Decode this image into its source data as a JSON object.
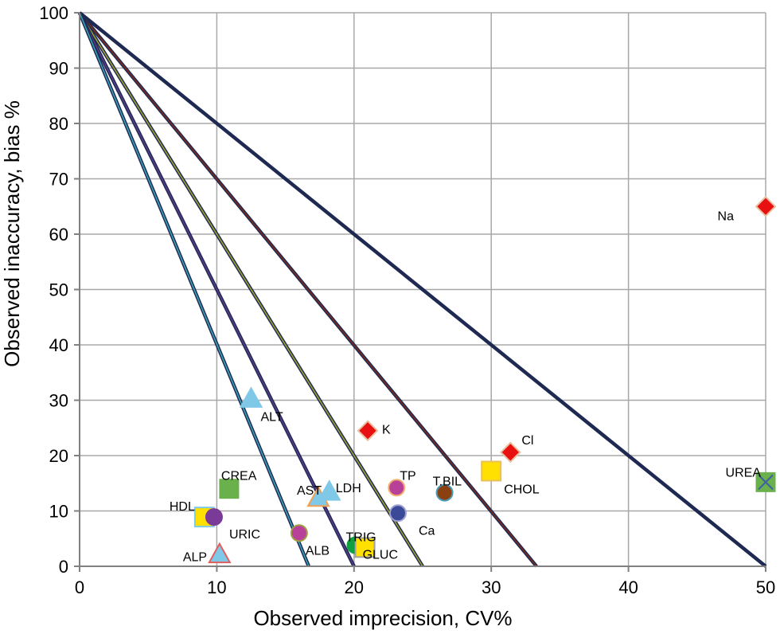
{
  "chart_data": {
    "type": "scatter",
    "xlabel": "Observed imprecision, CV%",
    "ylabel": "Observed inaccuracy, bias  %",
    "xlim": [
      0,
      50
    ],
    "ylim": [
      0,
      100
    ],
    "x_ticks": [
      0,
      10,
      20,
      30,
      40,
      50
    ],
    "y_ticks": [
      0,
      10,
      20,
      30,
      40,
      50,
      60,
      70,
      80,
      90,
      100
    ],
    "grid": true,
    "lines": [
      {
        "name": "line-x50",
        "x_intercept": 50,
        "y_intercept": 100,
        "color": "#1f2a52",
        "core": "#1f2a52"
      },
      {
        "name": "line-x33",
        "x_intercept": 33.3,
        "y_intercept": 100,
        "color": "#1f2a52",
        "core": "#7a2a1a"
      },
      {
        "name": "line-x25",
        "x_intercept": 25,
        "y_intercept": 100,
        "color": "#1f2a52",
        "core": "#9aa030"
      },
      {
        "name": "line-x20",
        "x_intercept": 20,
        "y_intercept": 100,
        "color": "#1f2a52",
        "core": "#5a3a8a"
      },
      {
        "name": "line-x16_7",
        "x_intercept": 16.7,
        "y_intercept": 100,
        "color": "#1f2a52",
        "core": "#3aa0b8"
      }
    ],
    "points": [
      {
        "label": "Na",
        "x": 50,
        "y": 65,
        "marker": "diamond",
        "fill": "#e81010",
        "stroke": "#e8c0a0"
      },
      {
        "label": "UREA",
        "x": 50,
        "y": 15.2,
        "marker": "square-x",
        "fill": "#6ab04c",
        "stroke": "#4060a0"
      },
      {
        "label": "K",
        "x": 21,
        "y": 24.5,
        "marker": "diamond",
        "fill": "#e81010",
        "stroke": "#e8c0a0"
      },
      {
        "label": "Cl",
        "x": 31.4,
        "y": 20.6,
        "marker": "diamond",
        "fill": "#e81010",
        "stroke": "#e8c0a0"
      },
      {
        "label": "CHOL",
        "x": 30,
        "y": 17.2,
        "marker": "square",
        "fill": "#ffe000",
        "stroke": "#e8c060"
      },
      {
        "label": "T.BIL",
        "x": 26.6,
        "y": 13.3,
        "marker": "circle",
        "fill": "#8a4010",
        "stroke": "#4a9ab8"
      },
      {
        "label": "TP",
        "x": 23.1,
        "y": 14.2,
        "marker": "circle",
        "fill": "#b84098",
        "stroke": "#f0b070"
      },
      {
        "label": "Ca",
        "x": 23.2,
        "y": 9.6,
        "marker": "circle",
        "fill": "#3a4a98",
        "stroke": "#a0a0d0"
      },
      {
        "label": "ALT",
        "x": 12.5,
        "y": 30.3,
        "marker": "triangle",
        "fill": "#80c8e8",
        "stroke": "#80c8e8"
      },
      {
        "label": "CREA",
        "x": 10.9,
        "y": 14,
        "marker": "square-x",
        "fill": "#6ab04c",
        "stroke": "#6ab04c"
      },
      {
        "label": "AST",
        "x": 17.4,
        "y": 12.4,
        "marker": "triangle",
        "fill": "#80c8e8",
        "stroke": "#f0a050"
      },
      {
        "label": "LDH",
        "x": 18.2,
        "y": 13.5,
        "marker": "triangle",
        "fill": "#80c8e8",
        "stroke": "#80c8e8"
      },
      {
        "label": "HDL",
        "x": 9.1,
        "y": 8.9,
        "marker": "square",
        "fill": "#ffe000",
        "stroke": "#80c8e8"
      },
      {
        "label": "URIC",
        "x": 9.8,
        "y": 8.9,
        "marker": "circle",
        "fill": "#7a3a98",
        "stroke": "#7a3a98"
      },
      {
        "label": "ALB",
        "x": 16,
        "y": 6,
        "marker": "circle",
        "fill": "#b84098",
        "stroke": "#a0a040"
      },
      {
        "label": "TRIG",
        "x": 20.1,
        "y": 3.8,
        "marker": "circle",
        "fill": "#10a040",
        "stroke": "#10a040"
      },
      {
        "label": "GLUC",
        "x": 20.8,
        "y": 3.4,
        "marker": "square",
        "fill": "#ffe000",
        "stroke": "#a0a0a0"
      },
      {
        "label": "ALP",
        "x": 10.2,
        "y": 2.2,
        "marker": "triangle",
        "fill": "#80c8e8",
        "stroke": "#e06060"
      }
    ]
  }
}
